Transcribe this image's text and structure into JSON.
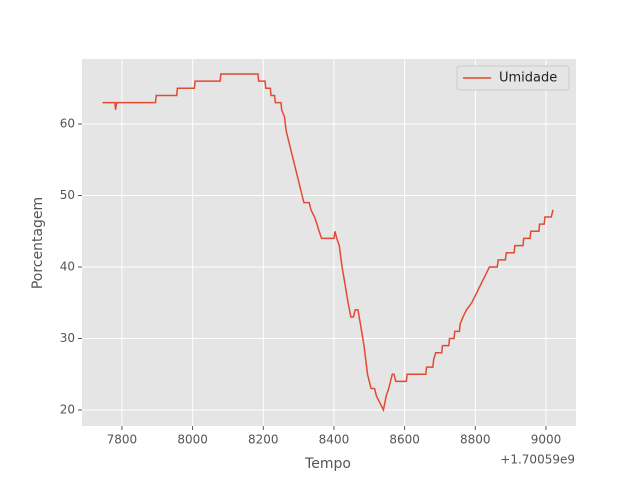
{
  "chart_data": {
    "type": "line",
    "x_label": "Tempo",
    "y_label": "Porcentagem",
    "x_offset_label": "+1.70059e9",
    "x": [
      7745,
      7780,
      7782,
      7785,
      7895,
      7897,
      7955,
      7957,
      8005,
      8007,
      8078,
      8080,
      8185,
      8187,
      8205,
      8207,
      8220,
      8222,
      8232,
      8234,
      8250,
      8252,
      8260,
      8265,
      8275,
      8285,
      8295,
      8305,
      8315,
      8330,
      8335,
      8345,
      8352,
      8358,
      8365,
      8400,
      8403,
      8408,
      8415,
      8423,
      8430,
      8440,
      8448,
      8455,
      8460,
      8468,
      8475,
      8485,
      8495,
      8505,
      8515,
      8520,
      8530,
      8540,
      8548,
      8555,
      8565,
      8570,
      8575,
      8605,
      8607,
      8660,
      8662,
      8680,
      8682,
      8688,
      8705,
      8707,
      8725,
      8727,
      8740,
      8742,
      8755,
      8757,
      8765,
      8775,
      8790,
      8800,
      8810,
      8820,
      8830,
      8840,
      8862,
      8865,
      8885,
      8888,
      8910,
      8912,
      8935,
      8937,
      8955,
      8957,
      8980,
      8982,
      8995,
      8997,
      9015,
      9020
    ],
    "series": [
      {
        "name": "Umidade",
        "color": "#e24a33",
        "values": [
          63,
          63,
          62,
          63,
          63,
          64,
          64,
          65,
          65,
          66,
          66,
          67,
          67,
          66,
          66,
          65,
          65,
          64,
          64,
          63,
          63,
          62,
          61,
          59,
          57,
          55,
          53,
          51,
          49,
          49,
          48,
          47,
          46,
          45,
          44,
          44,
          45,
          44,
          43,
          40,
          38,
          35,
          33,
          33,
          34,
          34,
          32,
          29,
          25,
          23,
          23,
          22,
          21,
          20,
          22,
          23,
          25,
          25,
          24,
          24,
          25,
          25,
          26,
          26,
          27,
          28,
          28,
          29,
          29,
          30,
          30,
          31,
          31,
          32,
          33,
          34,
          35,
          36,
          37,
          38,
          39,
          40,
          40,
          41,
          41,
          42,
          42,
          43,
          43,
          44,
          44,
          45,
          45,
          46,
          46,
          47,
          47,
          48
        ]
      }
    ],
    "xlim": [
      7687,
      9085
    ],
    "ylim": [
      17.76,
      69.1
    ],
    "xticks": [
      7800,
      8000,
      8200,
      8400,
      8600,
      8800,
      9000
    ],
    "yticks": [
      20,
      30,
      40,
      50,
      60
    ],
    "grid": true,
    "legend": "upper-right"
  }
}
